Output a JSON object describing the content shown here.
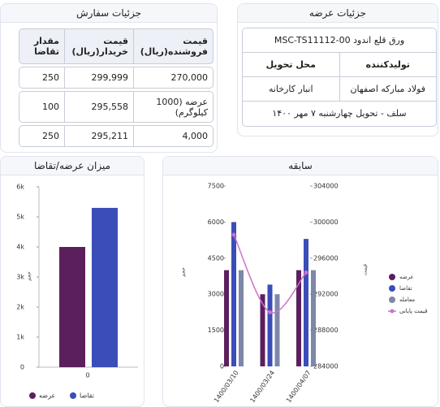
{
  "order_details": {
    "title": "جزئیات سفارش",
    "table": {
      "header": [
        "قیمت فروشنده(ریال)",
        "قیمت خریدار(ریال)",
        "مقدار تقاضا"
      ],
      "rows": [
        [
          "270,000",
          "299,999",
          "250"
        ],
        [
          "عرضه (1000 کیلوگرم)",
          "295,558",
          "100"
        ],
        [
          "4,000",
          "295,211",
          "250"
        ]
      ]
    }
  },
  "offer_details": {
    "title": "جزئیات عرضه",
    "product": "ورق قلع اندود MSC-TS11112-00",
    "header": [
      "تولیدکننده",
      "محل تحویل"
    ],
    "row": [
      "فولاد مبارکه اصفهان",
      "انبار کارخانه"
    ],
    "delivery": "سلف - تحویل چهارشنبه ۷ مهر ۱۴۰۰"
  },
  "chart_data": [
    {
      "type": "bar",
      "title": "میزان عرضه/تقاضا",
      "y_label": "حجم",
      "categories": [
        "0"
      ],
      "series": [
        {
          "name": "عرضه",
          "color": "#5c1f5e",
          "values": [
            4000
          ]
        },
        {
          "name": "تقاضا",
          "color": "#3a4db8",
          "values": [
            5300
          ]
        }
      ],
      "ylim": [
        0,
        6000
      ],
      "yticks": [
        0,
        {
          "value": 1000,
          "label": "1k"
        },
        {
          "value": 2000,
          "label": "2k"
        },
        {
          "value": 3000,
          "label": "3k"
        },
        {
          "value": 4000,
          "label": "4k"
        },
        {
          "value": 5000,
          "label": "5k"
        },
        {
          "value": 6000,
          "label": "6k"
        }
      ]
    },
    {
      "type": "bar",
      "title": "سابقه",
      "y_label": "حجم",
      "y2_label": "قیمت",
      "categories": [
        "1400/03/10",
        "1400/03/24",
        "1400/04/07"
      ],
      "series": [
        {
          "name": "عرضه",
          "color": "#5c1f5e",
          "values": [
            4000,
            3000,
            4000
          ]
        },
        {
          "name": "تقاضا",
          "color": "#3a4db8",
          "values": [
            6000,
            3400,
            5300
          ]
        },
        {
          "name": "معامله",
          "color": "#7d87a8",
          "values": [
            4000,
            3000,
            4000
          ]
        },
        {
          "name": "قیمت پایانی",
          "color": "#d070c8",
          "type": "line",
          "axis": "y2",
          "values": [
            298600,
            290000,
            294400
          ]
        }
      ],
      "ylim": [
        0,
        7500
      ],
      "yticks": [
        0,
        1500,
        3000,
        4500,
        6000,
        7500
      ],
      "y2lim": [
        284000,
        304000
      ],
      "y2ticks": [
        284000,
        288000,
        292000,
        296000,
        300000,
        304000
      ]
    }
  ]
}
